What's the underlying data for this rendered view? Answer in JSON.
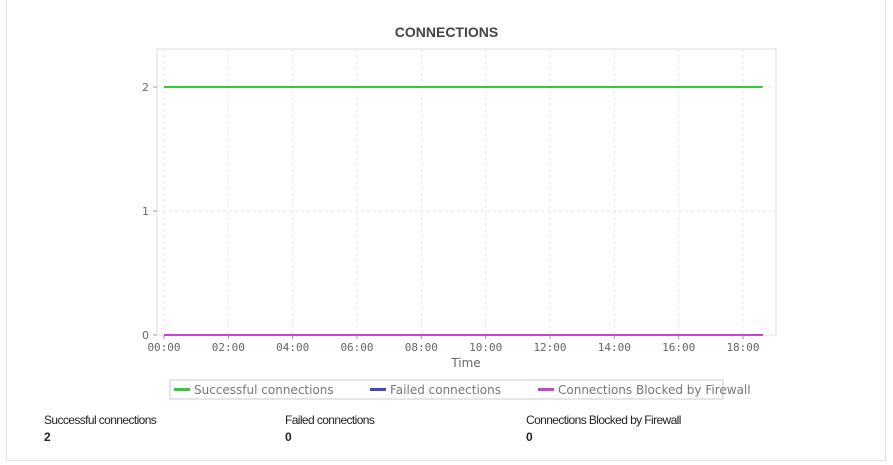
{
  "chart_data": {
    "type": "line",
    "title": "CONNECTIONS",
    "xlabel": "Time",
    "ylabel": "",
    "x_ticks": [
      "00:00",
      "02:00",
      "04:00",
      "06:00",
      "08:00",
      "10:00",
      "12:00",
      "14:00",
      "16:00",
      "18:00"
    ],
    "y_ticks": [
      "0",
      "1",
      "2"
    ],
    "ylim": [
      0,
      2.3
    ],
    "xlim": [
      "00:00",
      "18:45"
    ],
    "grid": true,
    "legend_position": "bottom",
    "x": [
      "00:00",
      "18:37"
    ],
    "series": [
      {
        "name": "Successful connections",
        "color": "#33cc33",
        "values": [
          2,
          2
        ]
      },
      {
        "name": "Failed connections",
        "color": "#4444cc",
        "values": [
          0,
          0
        ]
      },
      {
        "name": "Connections Blocked by Firewall",
        "color": "#cc44cc",
        "values": [
          0,
          0
        ]
      }
    ]
  },
  "summary": [
    {
      "label": "Successful connections",
      "value": "2"
    },
    {
      "label": "Failed connections",
      "value": "0"
    },
    {
      "label": "Connections Blocked by Firewall",
      "value": "0"
    }
  ]
}
